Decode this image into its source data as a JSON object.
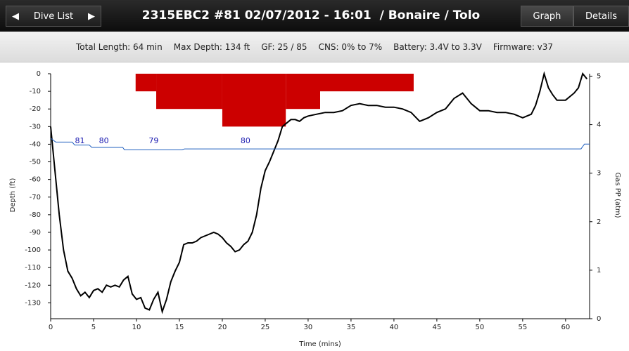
{
  "toolbar": {
    "back": "Dive List",
    "title": "2315EBC2 #81 02/07/2012 - 16:01  / Bonaire / Tolo",
    "tabs": [
      "Graph",
      "Details"
    ]
  },
  "summary": [
    "Total Length: 64 min",
    "Max Depth: 134 ft",
    "GF: 25 / 85",
    "CNS: 0% to 7%",
    "Battery: 3.4V to 3.3V",
    "Firmware: v37"
  ],
  "chart_data": {
    "type": "line",
    "xlabel": "Time (mins)",
    "ylabel": "Depth (ft)",
    "y2label": "Gas PP (atm)",
    "xlim": [
      0,
      62.8
    ],
    "xticks": [
      0,
      5,
      10,
      15,
      20,
      25,
      30,
      35,
      40,
      45,
      50,
      55,
      60
    ],
    "ylim": [
      -139,
      0
    ],
    "yticks": [
      0,
      -10,
      -20,
      -30,
      -40,
      -50,
      -60,
      -70,
      -80,
      -90,
      -100,
      -110,
      -120,
      -130
    ],
    "y2lim": [
      0,
      5.05
    ],
    "y2ticks": [
      0,
      1,
      2,
      3,
      4,
      5
    ],
    "series": [
      {
        "color": "#000000",
        "x": [
          0,
          0.5,
          1,
          1.5,
          2,
          2.5,
          3,
          3.5,
          4,
          4.5,
          5,
          5.5,
          6,
          6.5,
          7,
          7.5,
          8,
          8.5,
          9,
          9.5,
          10,
          10.5,
          11,
          11.5,
          12,
          12.5,
          13,
          13.5,
          14,
          14.5,
          15,
          15.5,
          16,
          16.5,
          17,
          17.5,
          18,
          18.5,
          19,
          19.5,
          20,
          20.5,
          21,
          21.5,
          22,
          22.5,
          23,
          23.5,
          24,
          24.5,
          25,
          25.5,
          26,
          26.5,
          27,
          27.5,
          28,
          28.5,
          29,
          29.5,
          30,
          31,
          32,
          33,
          34,
          35,
          36,
          37,
          38,
          39,
          40,
          41,
          42,
          43,
          44,
          45,
          46,
          47,
          48,
          49,
          50,
          51,
          52,
          53,
          54,
          55,
          56,
          56.5,
          57,
          57.5,
          58,
          58.5,
          59,
          60,
          61,
          61.5,
          62,
          62.5
        ],
        "values": [
          -30,
          -55,
          -80,
          -100,
          -112,
          -116,
          -122,
          -126,
          -124,
          -127,
          -123,
          -122,
          -124,
          -120,
          -121,
          -120,
          -121,
          -117,
          -115,
          -125,
          -128,
          -127,
          -133,
          -134,
          -128,
          -124,
          -135,
          -128,
          -118,
          -112,
          -107,
          -97,
          -96,
          -96,
          -95,
          -93,
          -92,
          -91,
          -90,
          -91,
          -93,
          -96,
          -98,
          -101,
          -100,
          -97,
          -95,
          -90,
          -80,
          -65,
          -55,
          -50,
          -44,
          -38,
          -30,
          -28,
          -26,
          -26,
          -27,
          -25,
          -24,
          -23,
          -22,
          -22,
          -21,
          -18,
          -17,
          -18,
          -18,
          -19,
          -19,
          -20,
          -22,
          -27,
          -25,
          -22,
          -20,
          -14,
          -11,
          -17,
          -21,
          -21,
          -22,
          -22,
          -23,
          -25,
          -23,
          -18,
          -10,
          0,
          -8,
          -12,
          -15,
          -15,
          -11,
          -8,
          0,
          -3
        ]
      },
      {
        "color": "#1f5fbf",
        "axis": "y2",
        "x": [
          0,
          0.3,
          0.6,
          2.5,
          2.8,
          4.5,
          4.8,
          8.4,
          8.6,
          15.3,
          15.6,
          61.8,
          62.2,
          62.8
        ],
        "values": [
          3.72,
          3.68,
          3.64,
          3.64,
          3.58,
          3.58,
          3.53,
          3.53,
          3.48,
          3.48,
          3.5,
          3.5,
          3.6,
          3.6
        ]
      }
    ],
    "ceiling": {
      "color": "#cc0000",
      "x": [
        9.9,
        12.3,
        20.0,
        27.4,
        31.4,
        42.3
      ],
      "values": [
        -10,
        -20,
        -30,
        -20,
        -10,
        0
      ]
    },
    "temperatures": {
      "color": "#1a1ab0",
      "x": [
        3.4,
        6.2,
        12.0,
        22.7
      ],
      "values": [
        81,
        80,
        79,
        80
      ]
    }
  }
}
